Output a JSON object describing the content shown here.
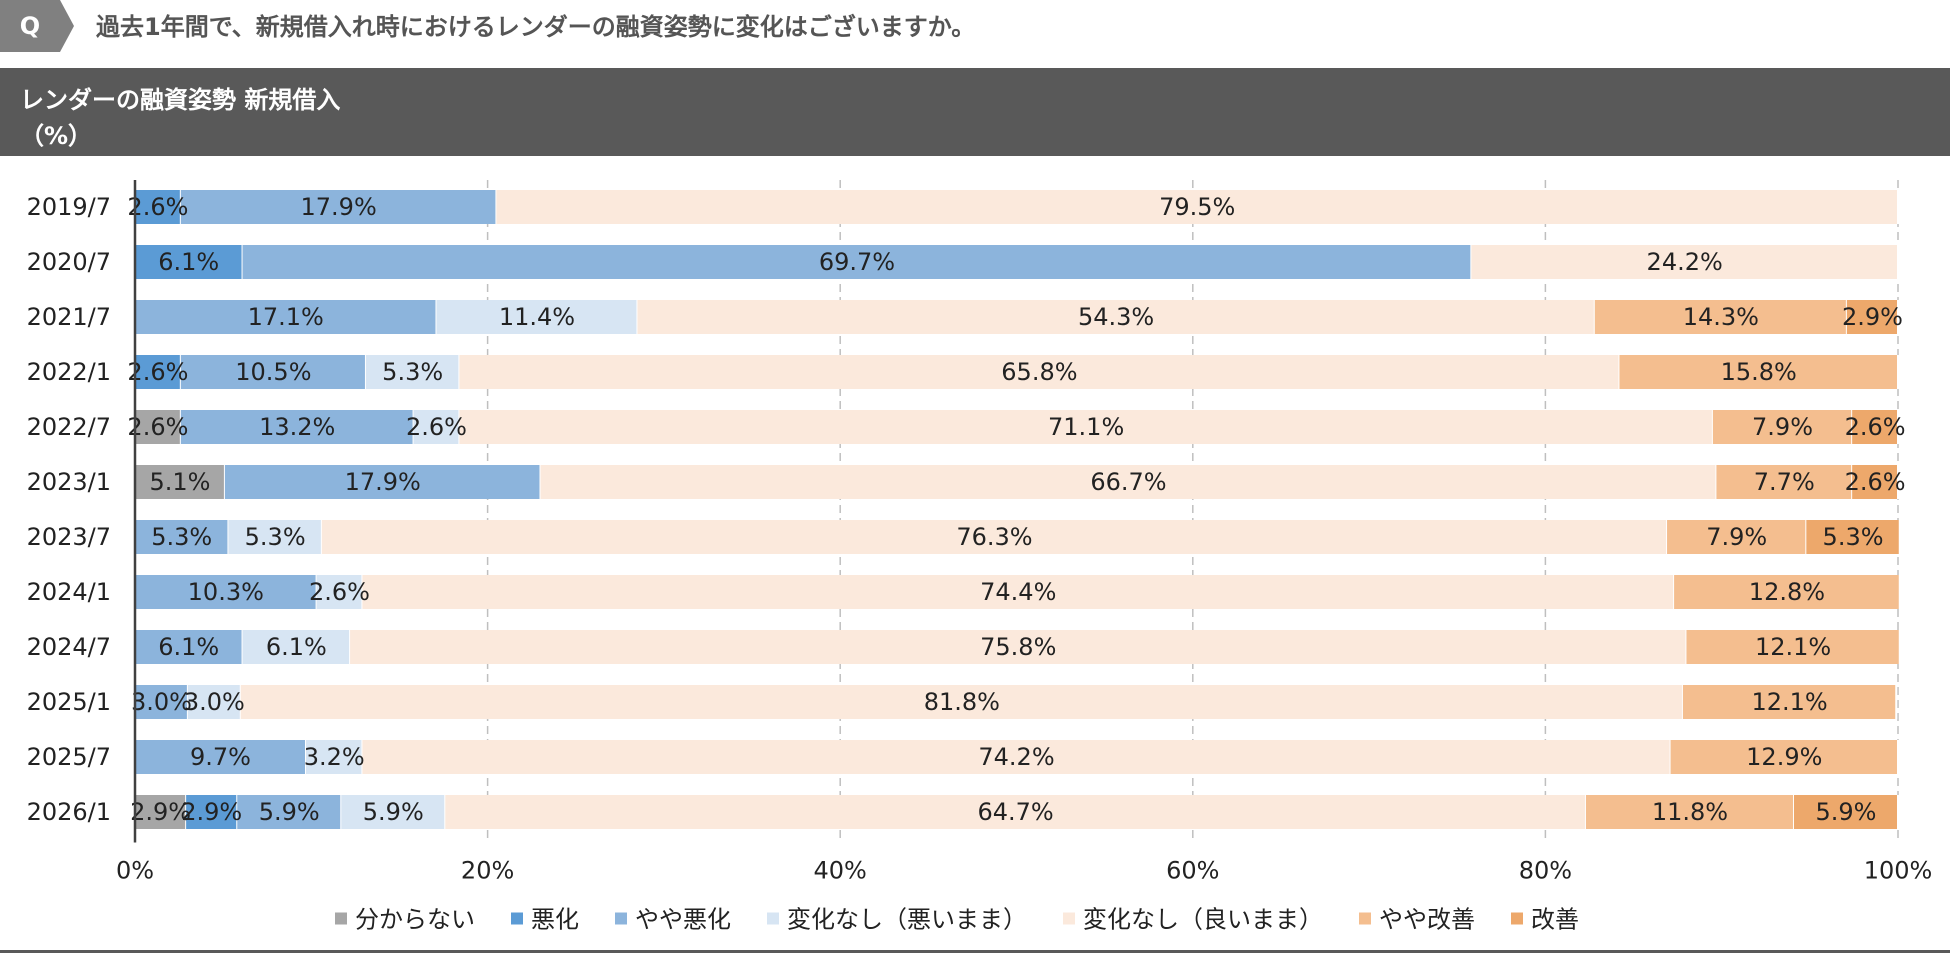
{
  "question": {
    "badge": "Q",
    "text": "過去1年間で、新規借入れ時におけるレンダーの融資姿勢に変化はございますか。"
  },
  "header": {
    "title": "レンダーの融資姿勢 新規借入",
    "unit": "（%）"
  },
  "chart_data": {
    "type": "bar",
    "orientation": "horizontal",
    "stacked": "100%",
    "categories": [
      "2019/7",
      "2020/7",
      "2021/7",
      "2022/1",
      "2022/7",
      "2023/1",
      "2023/7",
      "2024/1",
      "2024/7",
      "2025/1",
      "2025/7",
      "2026/1"
    ],
    "xlim": [
      0,
      100
    ],
    "x_ticks": [
      "0%",
      "20%",
      "40%",
      "60%",
      "80%",
      "100%"
    ],
    "grid": "vertical dashed",
    "legend_position": "bottom",
    "series": [
      {
        "name": "分からない",
        "color": "#A6A6A6",
        "values": [
          0,
          0,
          0,
          0,
          2.6,
          5.1,
          0,
          0,
          0,
          0,
          0,
          2.9
        ],
        "labels": [
          "",
          "",
          "",
          "",
          "2.6%",
          "5.1%",
          "",
          "",
          "",
          "",
          "",
          "2.9%"
        ]
      },
      {
        "name": "悪化",
        "color": "#5B9BD5",
        "values": [
          2.6,
          6.1,
          0,
          2.6,
          0,
          0,
          0,
          0,
          0,
          0,
          0,
          2.9
        ],
        "labels": [
          "2.6%",
          "6.1%",
          "",
          "2.6%",
          "",
          "",
          "",
          "",
          "",
          "",
          "",
          "2.9%"
        ]
      },
      {
        "name": "やや悪化",
        "color": "#8CB4DC",
        "values": [
          17.9,
          69.7,
          17.1,
          10.5,
          13.2,
          17.9,
          5.3,
          10.3,
          6.1,
          3.0,
          9.7,
          5.9
        ],
        "labels": [
          "17.9%",
          "69.7%",
          "17.1%",
          "10.5%",
          "13.2%",
          "17.9%",
          "5.3%",
          "10.3%",
          "6.1%",
          "3.0%",
          "9.7%",
          "5.9%"
        ]
      },
      {
        "name": "変化なし（悪いまま）",
        "color": "#D7E5F3",
        "values": [
          0,
          0,
          11.4,
          5.3,
          2.6,
          0,
          5.3,
          2.6,
          6.1,
          3.0,
          3.2,
          5.9
        ],
        "labels": [
          "",
          "",
          "11.4%",
          "5.3%",
          "2.6%",
          "",
          "5.3%",
          "2.6%",
          "6.1%",
          "3.0%",
          "3.2%",
          "5.9%"
        ]
      },
      {
        "name": "変化なし（良いまま）",
        "color": "#FBE9DC",
        "values": [
          79.5,
          24.2,
          54.3,
          65.8,
          71.1,
          66.7,
          76.3,
          74.4,
          75.8,
          81.8,
          74.2,
          64.7
        ],
        "labels": [
          "79.5%",
          "24.2%",
          "54.3%",
          "65.8%",
          "71.1%",
          "66.7%",
          "76.3%",
          "74.4%",
          "75.8%",
          "81.8%",
          "74.2%",
          "64.7%"
        ]
      },
      {
        "name": "やや改善",
        "color": "#F4BE8F",
        "values": [
          0,
          0,
          14.3,
          15.8,
          7.9,
          7.7,
          7.9,
          12.8,
          12.1,
          12.1,
          12.9,
          11.8
        ],
        "labels": [
          "",
          "",
          "14.3%",
          "15.8%",
          "7.9%",
          "7.7%",
          "7.9%",
          "12.8%",
          "12.1%",
          "12.1%",
          "12.9%",
          "11.8%"
        ]
      },
      {
        "name": "改善",
        "color": "#EDA86B",
        "values": [
          0,
          0,
          2.9,
          0,
          2.6,
          2.6,
          5.3,
          0,
          0,
          0,
          0,
          5.9
        ],
        "labels": [
          "",
          "",
          "2.9%",
          "",
          "2.6%",
          "2.6%",
          "5.3%",
          "",
          "",
          "",
          "",
          "5.9%"
        ]
      }
    ]
  },
  "colors": {
    "badge": "#808080",
    "header_bg": "#595959",
    "grid": "#BFBFBF",
    "axis": "#404040"
  }
}
